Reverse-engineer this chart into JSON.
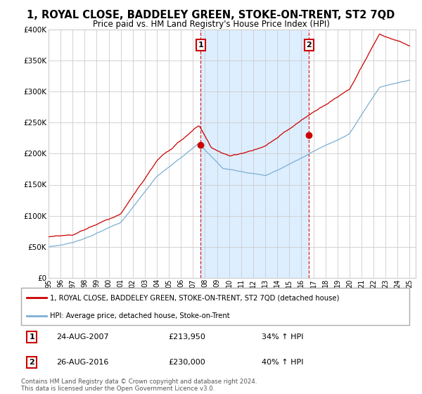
{
  "title": "1, ROYAL CLOSE, BADDELEY GREEN, STOKE-ON-TRENT, ST2 7QD",
  "subtitle": "Price paid vs. HM Land Registry's House Price Index (HPI)",
  "legend_line1": "1, ROYAL CLOSE, BADDELEY GREEN, STOKE-ON-TRENT, ST2 7QD (detached house)",
  "legend_line2": "HPI: Average price, detached house, Stoke-on-Trent",
  "footer": "Contains HM Land Registry data © Crown copyright and database right 2024.\nThis data is licensed under the Open Government Licence v3.0.",
  "sale1_date": "24-AUG-2007",
  "sale1_price": 213950,
  "sale1_label": "34% ↑ HPI",
  "sale2_date": "26-AUG-2016",
  "sale2_price": 230000,
  "sale2_label": "40% ↑ HPI",
  "hpi_color": "#7bafd4",
  "property_color": "#cc0000",
  "marker_box_color": "#cc0000",
  "shade_color": "#ddeeff",
  "ylim": [
    0,
    400000
  ],
  "xlim_start": 1995.0,
  "xlim_end": 2025.5,
  "sale1_x": 2007.64,
  "sale2_x": 2016.64,
  "background_color": "#ffffff",
  "grid_color": "#cccccc"
}
